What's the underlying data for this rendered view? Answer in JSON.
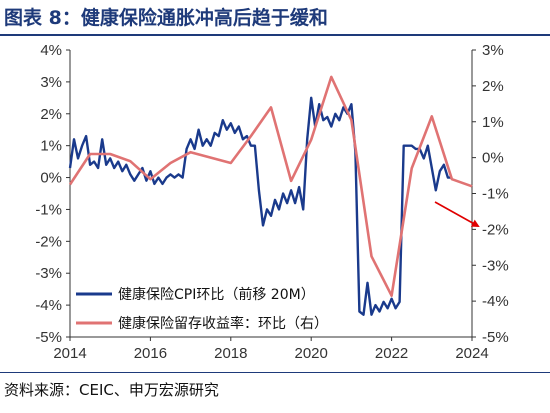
{
  "title": "图表 8：健康保险通胀冲高后趋于缓和",
  "source": "资料来源：CEIC、申万宏源研究",
  "chart_data": {
    "type": "line",
    "x_range": [
      2014,
      2024
    ],
    "x_ticks": [
      "2014",
      "2016",
      "2018",
      "2020",
      "2022",
      "2024"
    ],
    "y_left": {
      "range": [
        -5,
        4
      ],
      "ticks": [
        "4%",
        "3%",
        "2%",
        "1%",
        "0%",
        "-1%",
        "-2%",
        "-3%",
        "-4%",
        "-5%"
      ]
    },
    "y_right": {
      "range": [
        -5,
        3
      ],
      "ticks": [
        "3%",
        "2%",
        "1%",
        "0%",
        "-1%",
        "-2%",
        "-3%",
        "-4%",
        "-5%"
      ]
    },
    "grid": false,
    "legend_position": "bottom-left",
    "series": [
      {
        "name": "健康保险CPI环比（前移 20M）",
        "axis": "left",
        "color": "#1a3a8c",
        "points": [
          [
            2014.0,
            0.3
          ],
          [
            2014.1,
            1.2
          ],
          [
            2014.2,
            0.6
          ],
          [
            2014.3,
            1.0
          ],
          [
            2014.4,
            1.3
          ],
          [
            2014.5,
            0.4
          ],
          [
            2014.6,
            0.5
          ],
          [
            2014.7,
            0.3
          ],
          [
            2014.8,
            1.2
          ],
          [
            2014.9,
            0.4
          ],
          [
            2015.0,
            0.6
          ],
          [
            2015.1,
            0.3
          ],
          [
            2015.2,
            0.5
          ],
          [
            2015.3,
            0.2
          ],
          [
            2015.4,
            0.4
          ],
          [
            2015.5,
            0.1
          ],
          [
            2015.6,
            -0.1
          ],
          [
            2015.7,
            0.1
          ],
          [
            2015.8,
            0.3
          ],
          [
            2015.9,
            -0.1
          ],
          [
            2016.0,
            0.2
          ],
          [
            2016.1,
            -0.2
          ],
          [
            2016.2,
            0.0
          ],
          [
            2016.3,
            -0.2
          ],
          [
            2016.4,
            0.0
          ],
          [
            2016.5,
            0.1
          ],
          [
            2016.6,
            0.0
          ],
          [
            2016.7,
            0.1
          ],
          [
            2016.8,
            0.0
          ],
          [
            2016.9,
            0.9
          ],
          [
            2017.0,
            1.2
          ],
          [
            2017.1,
            0.9
          ],
          [
            2017.2,
            1.5
          ],
          [
            2017.3,
            1.0
          ],
          [
            2017.4,
            1.2
          ],
          [
            2017.5,
            1.0
          ],
          [
            2017.6,
            1.4
          ],
          [
            2017.7,
            1.3
          ],
          [
            2017.8,
            1.8
          ],
          [
            2017.9,
            1.5
          ],
          [
            2018.0,
            1.7
          ],
          [
            2018.1,
            1.4
          ],
          [
            2018.2,
            1.6
          ],
          [
            2018.3,
            1.2
          ],
          [
            2018.4,
            1.3
          ],
          [
            2018.5,
            1.0
          ],
          [
            2018.6,
            1.0
          ],
          [
            2018.7,
            -0.4
          ],
          [
            2018.8,
            -1.5
          ],
          [
            2018.9,
            -1.0
          ],
          [
            2019.0,
            -1.2
          ],
          [
            2019.1,
            -0.7
          ],
          [
            2019.2,
            -1.0
          ],
          [
            2019.3,
            -0.5
          ],
          [
            2019.4,
            -0.8
          ],
          [
            2019.5,
            -0.4
          ],
          [
            2019.6,
            -0.8
          ],
          [
            2019.7,
            -0.3
          ],
          [
            2019.8,
            -1.0
          ],
          [
            2019.9,
            1.2
          ],
          [
            2020.0,
            2.5
          ],
          [
            2020.1,
            1.6
          ],
          [
            2020.2,
            2.3
          ],
          [
            2020.3,
            1.8
          ],
          [
            2020.4,
            1.9
          ],
          [
            2020.5,
            1.6
          ],
          [
            2020.6,
            2.0
          ],
          [
            2020.7,
            1.8
          ],
          [
            2020.8,
            2.2
          ],
          [
            2020.9,
            2.0
          ],
          [
            2021.0,
            2.3
          ],
          [
            2021.1,
            0.8
          ],
          [
            2021.2,
            -4.2
          ],
          [
            2021.3,
            -4.3
          ],
          [
            2021.4,
            -3.3
          ],
          [
            2021.5,
            -4.3
          ],
          [
            2021.6,
            -4.0
          ],
          [
            2021.7,
            -4.2
          ],
          [
            2021.8,
            -3.9
          ],
          [
            2021.9,
            -4.1
          ],
          [
            2022.0,
            -3.8
          ],
          [
            2022.1,
            -4.1
          ],
          [
            2022.2,
            -3.9
          ],
          [
            2022.3,
            1.0
          ],
          [
            2022.4,
            1.0
          ],
          [
            2022.5,
            1.0
          ],
          [
            2022.6,
            0.9
          ],
          [
            2022.7,
            0.9
          ],
          [
            2022.8,
            0.6
          ],
          [
            2022.9,
            1.0
          ],
          [
            2023.0,
            0.3
          ],
          [
            2023.1,
            -0.4
          ],
          [
            2023.2,
            0.2
          ],
          [
            2023.3,
            0.4
          ],
          [
            2023.4,
            0.0
          ],
          [
            2023.5,
            0.0
          ]
        ]
      },
      {
        "name": "健康保险留存收益率：环比（右）",
        "axis": "right",
        "color": "#e07373",
        "points": [
          [
            2014.0,
            -0.75
          ],
          [
            2014.5,
            0.1
          ],
          [
            2015.0,
            0.1
          ],
          [
            2015.5,
            -0.1
          ],
          [
            2016.0,
            -0.6
          ],
          [
            2016.5,
            -0.15
          ],
          [
            2017.0,
            0.15
          ],
          [
            2017.5,
            0.0
          ],
          [
            2018.0,
            -0.15
          ],
          [
            2018.5,
            0.6
          ],
          [
            2019.0,
            1.4
          ],
          [
            2019.5,
            -0.65
          ],
          [
            2020.0,
            0.5
          ],
          [
            2020.5,
            2.25
          ],
          [
            2021.0,
            1.05
          ],
          [
            2021.5,
            -2.75
          ],
          [
            2022.0,
            -3.85
          ],
          [
            2022.5,
            -0.3
          ],
          [
            2023.0,
            1.15
          ],
          [
            2023.5,
            -0.6
          ],
          [
            2024.0,
            -0.8
          ]
        ]
      }
    ],
    "annotations": [
      {
        "type": "arrow",
        "color": "#e00000",
        "description": "red arrow pointing down-right toward end of retained-earnings line"
      }
    ]
  }
}
